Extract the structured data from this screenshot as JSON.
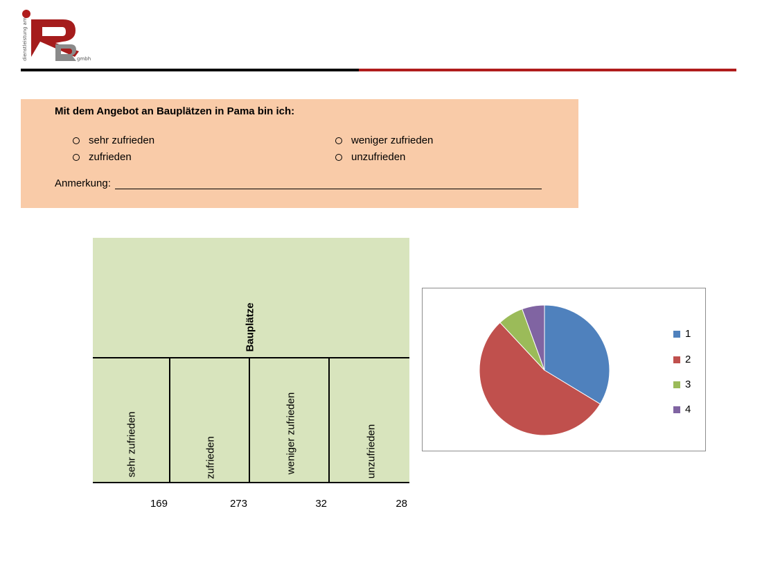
{
  "logo": {
    "vertical_text": "dienstleistung am",
    "brand_text": "gmbh"
  },
  "question": {
    "title": "Mit dem Angebot an Bauplätzen in Pama bin ich:",
    "options": [
      "sehr zufrieden",
      "zufrieden",
      "weniger zufrieden",
      "unzufrieden"
    ],
    "remark_label": "Anmerkung:"
  },
  "table": {
    "title": "Bauplätze",
    "columns": [
      "sehr zufrieden",
      "zufrieden",
      "weniger zufrieden",
      "unzufrieden"
    ],
    "counts": [
      "169",
      "273",
      "32",
      "28"
    ]
  },
  "colors": {
    "header_red": "#b01c1c",
    "question_bg": "#f9cba8",
    "table_bg": "#d8e4bd"
  },
  "chart_data": {
    "type": "pie",
    "categories": [
      "1",
      "2",
      "3",
      "4"
    ],
    "values": [
      169,
      273,
      32,
      28
    ],
    "colors": [
      "#4f81bd",
      "#c0504d",
      "#9bbb59",
      "#8064a2"
    ],
    "legend_position": "right"
  }
}
